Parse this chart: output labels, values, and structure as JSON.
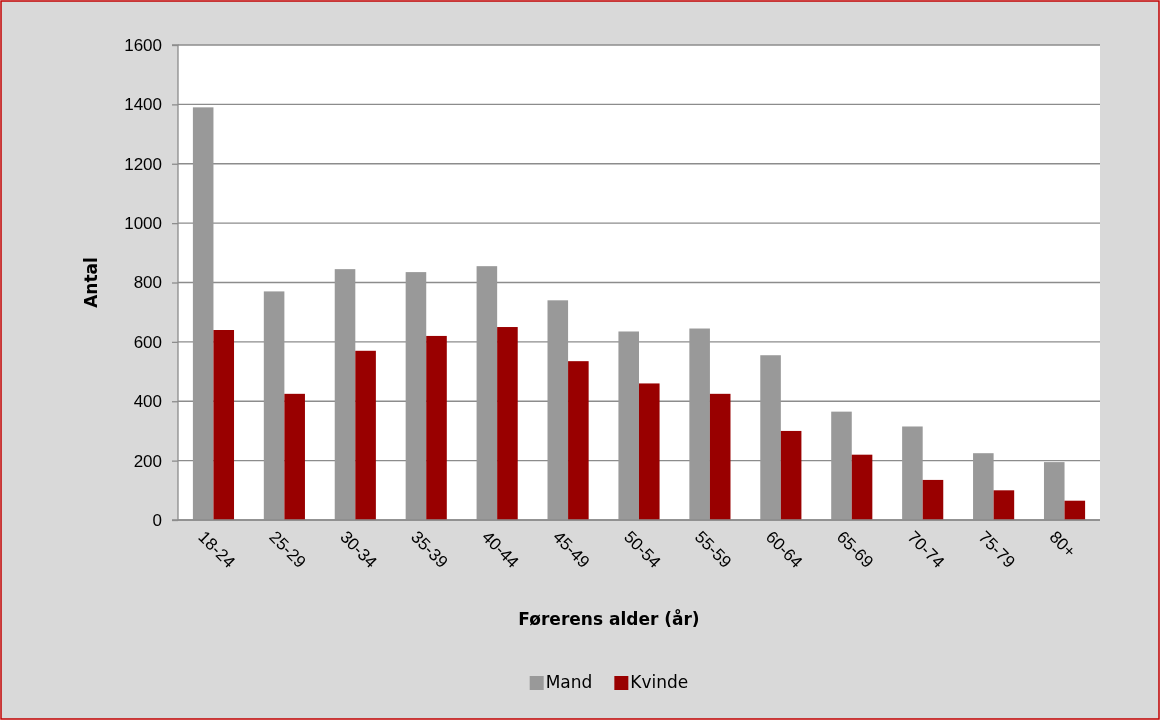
{
  "chart_data": {
    "type": "bar",
    "xlabel": "Førerens alder (år)",
    "ylabel": "Antal",
    "categories": [
      "18-24",
      "25-29",
      "30-34",
      "35-39",
      "40-44",
      "45-49",
      "50-54",
      "55-59",
      "60-64",
      "65-69",
      "70-74",
      "75-79",
      "80+"
    ],
    "series": [
      {
        "name": "Mand",
        "color": "#999999",
        "values": [
          1390,
          770,
          845,
          835,
          855,
          740,
          635,
          645,
          555,
          365,
          315,
          225,
          195
        ]
      },
      {
        "name": "Kvinde",
        "color": "#990000",
        "values": [
          640,
          425,
          570,
          620,
          650,
          535,
          460,
          425,
          300,
          220,
          135,
          100,
          65
        ]
      }
    ],
    "ylim": [
      0,
      1600
    ],
    "yticks": [
      0,
      200,
      400,
      600,
      800,
      1000,
      1200,
      1400,
      1600
    ],
    "grid": "y",
    "legend": "bottom"
  }
}
